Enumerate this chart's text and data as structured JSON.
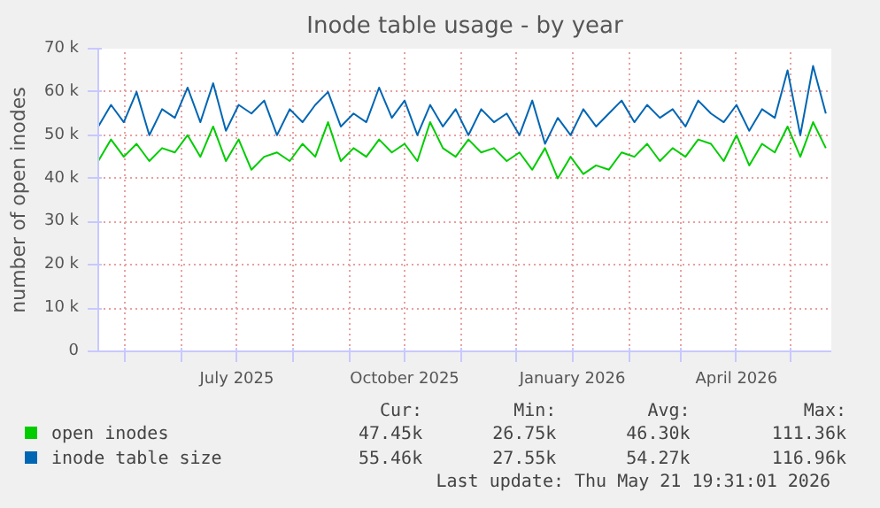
{
  "chart_data": {
    "type": "line",
    "title": "Inode table usage - by year",
    "ylabel": "number of open inodes",
    "x": [
      "2025-04-16",
      "2025-04-23",
      "2025-04-30",
      "2025-05-07",
      "2025-05-14",
      "2025-05-21",
      "2025-05-28",
      "2025-06-04",
      "2025-06-11",
      "2025-06-18",
      "2025-06-25",
      "2025-07-02",
      "2025-07-09",
      "2025-07-16",
      "2025-07-23",
      "2025-07-30",
      "2025-08-06",
      "2025-08-13",
      "2025-08-20",
      "2025-08-27",
      "2025-09-03",
      "2025-09-10",
      "2025-09-17",
      "2025-09-24",
      "2025-10-01",
      "2025-10-08",
      "2025-10-15",
      "2025-10-22",
      "2025-10-29",
      "2025-11-05",
      "2025-11-12",
      "2025-11-19",
      "2025-11-26",
      "2025-12-03",
      "2025-12-10",
      "2025-12-17",
      "2025-12-24",
      "2025-12-31",
      "2026-01-07",
      "2026-01-14",
      "2026-01-21",
      "2026-01-28",
      "2026-02-04",
      "2026-02-11",
      "2026-02-18",
      "2026-02-25",
      "2026-03-04",
      "2026-03-11",
      "2026-03-18",
      "2026-03-25",
      "2026-04-01",
      "2026-04-08",
      "2026-04-15",
      "2026-04-22",
      "2026-04-29",
      "2026-05-06",
      "2026-05-13",
      "2026-05-20"
    ],
    "series": [
      {
        "name": "open inodes",
        "color": "#00cc00",
        "values": [
          44,
          49,
          45,
          48,
          44,
          47,
          46,
          50,
          45,
          52,
          44,
          49,
          42,
          45,
          46,
          44,
          48,
          45,
          53,
          44,
          47,
          45,
          49,
          46,
          48,
          44,
          53,
          47,
          45,
          49,
          46,
          47,
          44,
          46,
          42,
          47,
          40,
          45,
          41,
          43,
          42,
          46,
          45,
          48,
          44,
          47,
          45,
          49,
          48,
          44,
          50,
          43,
          48,
          46,
          52,
          45,
          53,
          47
        ]
      },
      {
        "name": "inode table size",
        "color": "#0066b3",
        "values": [
          52,
          57,
          53,
          60,
          50,
          56,
          54,
          61,
          53,
          62,
          51,
          57,
          55,
          58,
          50,
          56,
          53,
          57,
          60,
          52,
          55,
          53,
          61,
          54,
          58,
          50,
          57,
          52,
          56,
          50,
          56,
          53,
          55,
          50,
          58,
          48,
          54,
          50,
          56,
          52,
          55,
          58,
          53,
          57,
          54,
          56,
          52,
          58,
          55,
          53,
          57,
          51,
          56,
          54,
          65,
          50,
          66,
          55
        ]
      }
    ],
    "xlim": [
      "2025-04-16",
      "2026-05-23"
    ],
    "xticks": [
      {
        "value": "2025-05-01",
        "label": null
      },
      {
        "value": "2025-06-01",
        "label": null
      },
      {
        "value": "2025-07-01",
        "label": "July 2025"
      },
      {
        "value": "2025-08-01",
        "label": null
      },
      {
        "value": "2025-09-01",
        "label": null
      },
      {
        "value": "2025-10-01",
        "label": "October 2025"
      },
      {
        "value": "2025-11-01",
        "label": null
      },
      {
        "value": "2025-12-01",
        "label": null
      },
      {
        "value": "2026-01-01",
        "label": "January 2026"
      },
      {
        "value": "2026-02-01",
        "label": null
      },
      {
        "value": "2026-03-01",
        "label": null
      },
      {
        "value": "2026-04-01",
        "label": "April 2026"
      },
      {
        "value": "2026-05-01",
        "label": null
      }
    ],
    "ylim": [
      0,
      70
    ],
    "yticks": [
      0,
      {
        "value": 10,
        "label": "10 k"
      },
      {
        "value": 20,
        "label": "20 k"
      },
      {
        "value": 30,
        "label": "30 k"
      },
      {
        "value": 40,
        "label": "40 k"
      },
      {
        "value": 50,
        "label": "50 k"
      },
      {
        "value": 60,
        "label": "60 k"
      },
      {
        "value": 70,
        "label": "70 k"
      }
    ],
    "grid": true,
    "legend": "bottom",
    "annotations": [
      "Cur:",
      "Min:",
      "Avg:",
      "Max:",
      "47.45k",
      "26.75k",
      "46.30k",
      "111.36k",
      "55.46k",
      "27.55k",
      "54.27k",
      "116.96k",
      "Last update: Thu May 21 19:31:01 2026"
    ]
  }
}
